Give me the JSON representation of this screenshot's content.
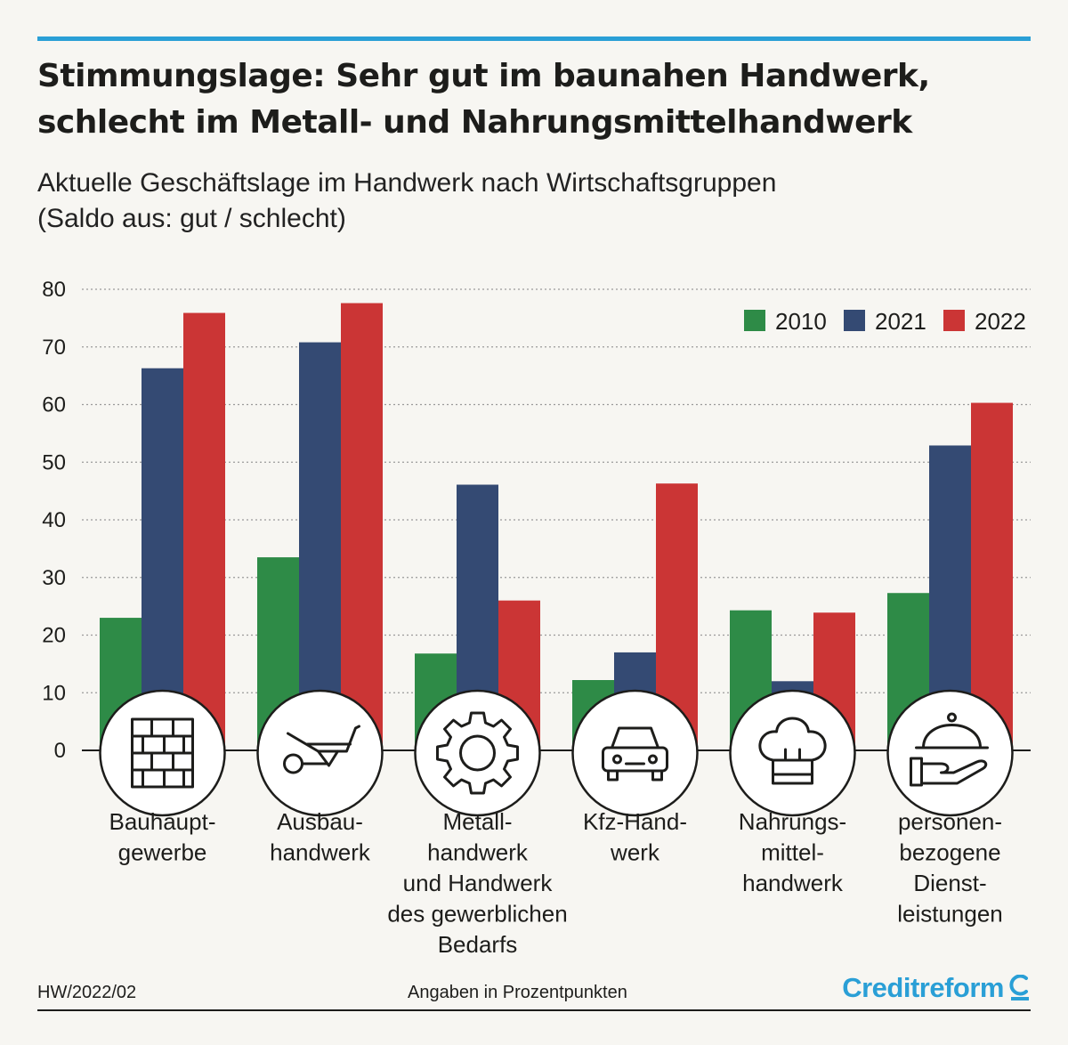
{
  "header": {
    "title_line1": "Stimmungslage: Sehr gut im baunahen Handwerk,",
    "title_line2": "schlecht im Metall- und Nahrungsmittelhandwerk",
    "subtitle_line1": "Aktuelle Geschäftslage im Handwerk nach Wirtschaftsgruppen",
    "subtitle_line2": "(Saldo aus: gut / schlecht)"
  },
  "footer": {
    "code": "HW/2022/02",
    "note": "Angaben in Prozentpunkten",
    "brand": "Creditreform"
  },
  "colors": {
    "accent": "#2a9fd6",
    "series_2010": "#2e8b47",
    "series_2021": "#344a73",
    "series_2022": "#cb3535",
    "gridline": "#9a9a9a"
  },
  "chart_data": {
    "type": "bar",
    "title": "Aktuelle Geschäftslage im Handwerk nach Wirtschaftsgruppen",
    "xlabel": "",
    "ylabel": "",
    "ylim": [
      0,
      80
    ],
    "yticks": [
      0,
      10,
      20,
      30,
      40,
      50,
      60,
      70,
      80
    ],
    "grid": true,
    "legend_position": "top-right",
    "categories": [
      [
        "Bauhaupt-",
        "gewerbe"
      ],
      [
        "Ausbau-",
        "handwerk"
      ],
      [
        "Metall-",
        "handwerk",
        "und Handwerk",
        "des gewerblichen",
        "Bedarfs"
      ],
      [
        "Kfz-Hand-",
        "werk"
      ],
      [
        "Nahrungs-",
        "mittel-",
        "handwerk"
      ],
      [
        "personen-",
        "bezogene",
        "Dienst-",
        "leistungen"
      ]
    ],
    "category_icons": [
      "brick-wall-icon",
      "wheelbarrow-icon",
      "gear-icon",
      "car-icon",
      "chef-hat-icon",
      "serving-cloche-hand-icon"
    ],
    "series": [
      {
        "name": "2010",
        "values": [
          23,
          33.5,
          16.8,
          12.2,
          24.3,
          27.3
        ]
      },
      {
        "name": "2021",
        "values": [
          66.3,
          70.8,
          46.1,
          17,
          12,
          52.9
        ]
      },
      {
        "name": "2022",
        "values": [
          75.9,
          77.6,
          26,
          46.3,
          23.9,
          60.3
        ]
      }
    ]
  }
}
